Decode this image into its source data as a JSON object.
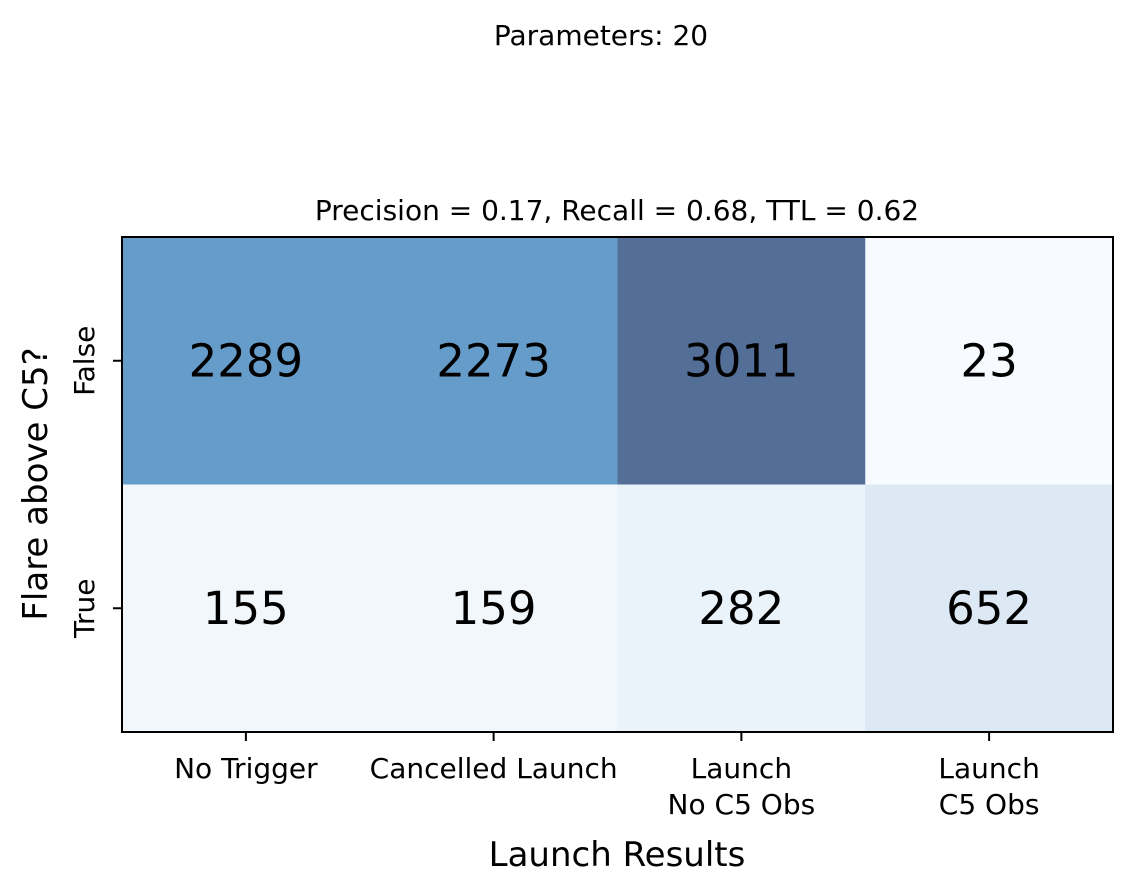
{
  "chart_data": {
    "type": "heatmap",
    "suptitle": "Parameters: 20",
    "title": "Precision = 0.17, Recall = 0.68, TTL = 0.62",
    "xlabel": "Launch Results",
    "ylabel": "Flare above C5?",
    "x_categories": [
      "No Trigger",
      "Cancelled Launch",
      "Launch\nNo C5 Obs",
      "Launch\nC5 Obs"
    ],
    "y_categories": [
      "False",
      "True"
    ],
    "values": [
      [
        2289,
        2273,
        3011,
        23
      ],
      [
        155,
        159,
        282,
        652
      ]
    ],
    "cell_colors": [
      [
        "#669cca",
        "#669cca",
        "#536f98",
        "#f7fbff"
      ],
      [
        "#f2f7fc",
        "#f2f7fc",
        "#eaf2fa",
        "#dce8f4"
      ]
    ],
    "colormap": "Blues",
    "grid": false
  }
}
